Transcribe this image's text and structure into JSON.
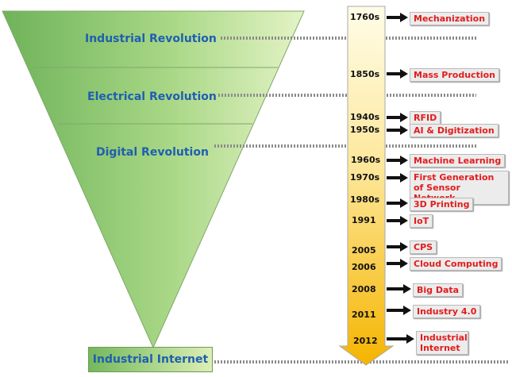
{
  "revolutions": [
    {
      "label": "Industrial Revolution"
    },
    {
      "label": "Electrical Revolution"
    },
    {
      "label": "Digital Revolution"
    }
  ],
  "final_stage": {
    "label": "Industrial Internet"
  },
  "timeline": [
    {
      "year": "1760s",
      "event": "Mechanization"
    },
    {
      "year": "1850s",
      "event": "Mass Production"
    },
    {
      "year": "1940s",
      "event": "RFID"
    },
    {
      "year": "1950s",
      "event": "AI & Digitization"
    },
    {
      "year": "1960s",
      "event": "Machine Learning"
    },
    {
      "year": "1970s",
      "event": "First Generation of Sensor Network"
    },
    {
      "year": "1980s",
      "event": "3D Printing"
    },
    {
      "year": "1991",
      "event": "IoT"
    },
    {
      "year": "2005",
      "event": "CPS"
    },
    {
      "year": "2006",
      "event": "Cloud Computing"
    },
    {
      "year": "2008",
      "event": "Big Data"
    },
    {
      "year": "2011",
      "event": "Industry 4.0"
    },
    {
      "year": "2012",
      "event": "Industrial Internet"
    }
  ],
  "colors": {
    "funnel_dark": "#6fb35a",
    "funnel_light": "#e4f3c6",
    "arrow_top": "#fffde8",
    "arrow_bottom": "#f5b400",
    "event_text": "#e31c1c",
    "revolution_text": "#1f5fb0"
  }
}
